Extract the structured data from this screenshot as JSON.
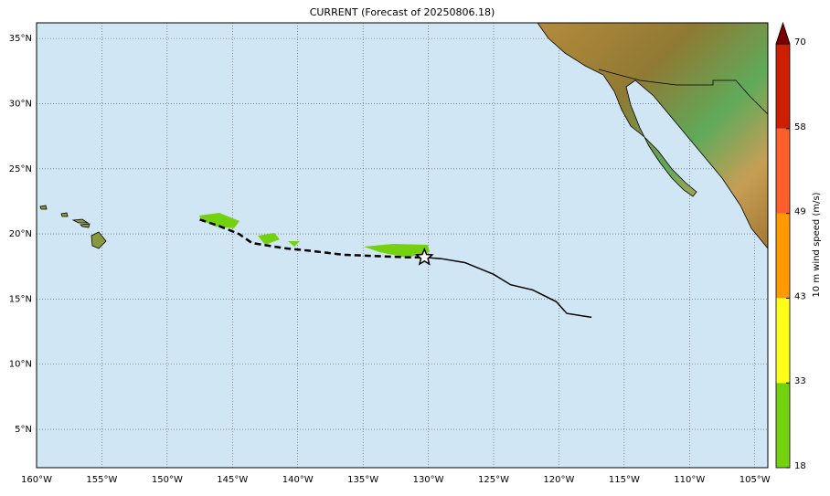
{
  "map": {
    "title": "CURRENT (Forecast of 20250806.18)",
    "xlim": [
      -160,
      -104
    ],
    "ylim": [
      2.06,
      36.2
    ],
    "xticks": [
      {
        "value": -160,
        "label": "160°W"
      },
      {
        "value": -155,
        "label": "155°W"
      },
      {
        "value": -150,
        "label": "150°W"
      },
      {
        "value": -145,
        "label": "145°W"
      },
      {
        "value": -140,
        "label": "140°W"
      },
      {
        "value": -135,
        "label": "135°W"
      },
      {
        "value": -130,
        "label": "130°W"
      },
      {
        "value": -125,
        "label": "125°W"
      },
      {
        "value": -120,
        "label": "120°W"
      },
      {
        "value": -115,
        "label": "115°W"
      },
      {
        "value": -110,
        "label": "110°W"
      },
      {
        "value": -105,
        "label": "105°W"
      }
    ],
    "yticks": [
      {
        "value": 5,
        "label": "5°N"
      },
      {
        "value": 10,
        "label": "10°N"
      },
      {
        "value": 15,
        "label": "15°N"
      },
      {
        "value": 20,
        "label": "20°N"
      },
      {
        "value": 25,
        "label": "25°N"
      },
      {
        "value": 30,
        "label": "30°N"
      },
      {
        "value": 35,
        "label": "35°N"
      }
    ],
    "past_track": {
      "lon": [
        -147.5,
        -146,
        -144.5,
        -143.5,
        -141,
        -139,
        -136.5,
        -134,
        -131.5,
        -130.3
      ],
      "lat": [
        21.1,
        20.6,
        20.0,
        19.3,
        18.9,
        18.7,
        18.4,
        18.3,
        18.2,
        18.2
      ]
    },
    "forecast_track": {
      "lon": [
        -130.3,
        -129,
        -127.2,
        -125,
        -123.7,
        -122,
        -120.2,
        -119.4,
        -117.5
      ],
      "lat": [
        18.2,
        18.1,
        17.8,
        16.9,
        16.1,
        15.7,
        14.8,
        13.9,
        13.6
      ]
    },
    "current_position": {
      "lon": -130.3,
      "lat": 18.2
    },
    "colorbar": {
      "label": "10 m wind speed (m/s)",
      "levels": [
        18,
        33,
        43,
        49,
        58,
        70
      ],
      "colors": [
        "#74d10f",
        "#ffff1a",
        "#ff9900",
        "#ff5f2a",
        "#cc2000"
      ],
      "extend_color": "#7a0000"
    }
  }
}
